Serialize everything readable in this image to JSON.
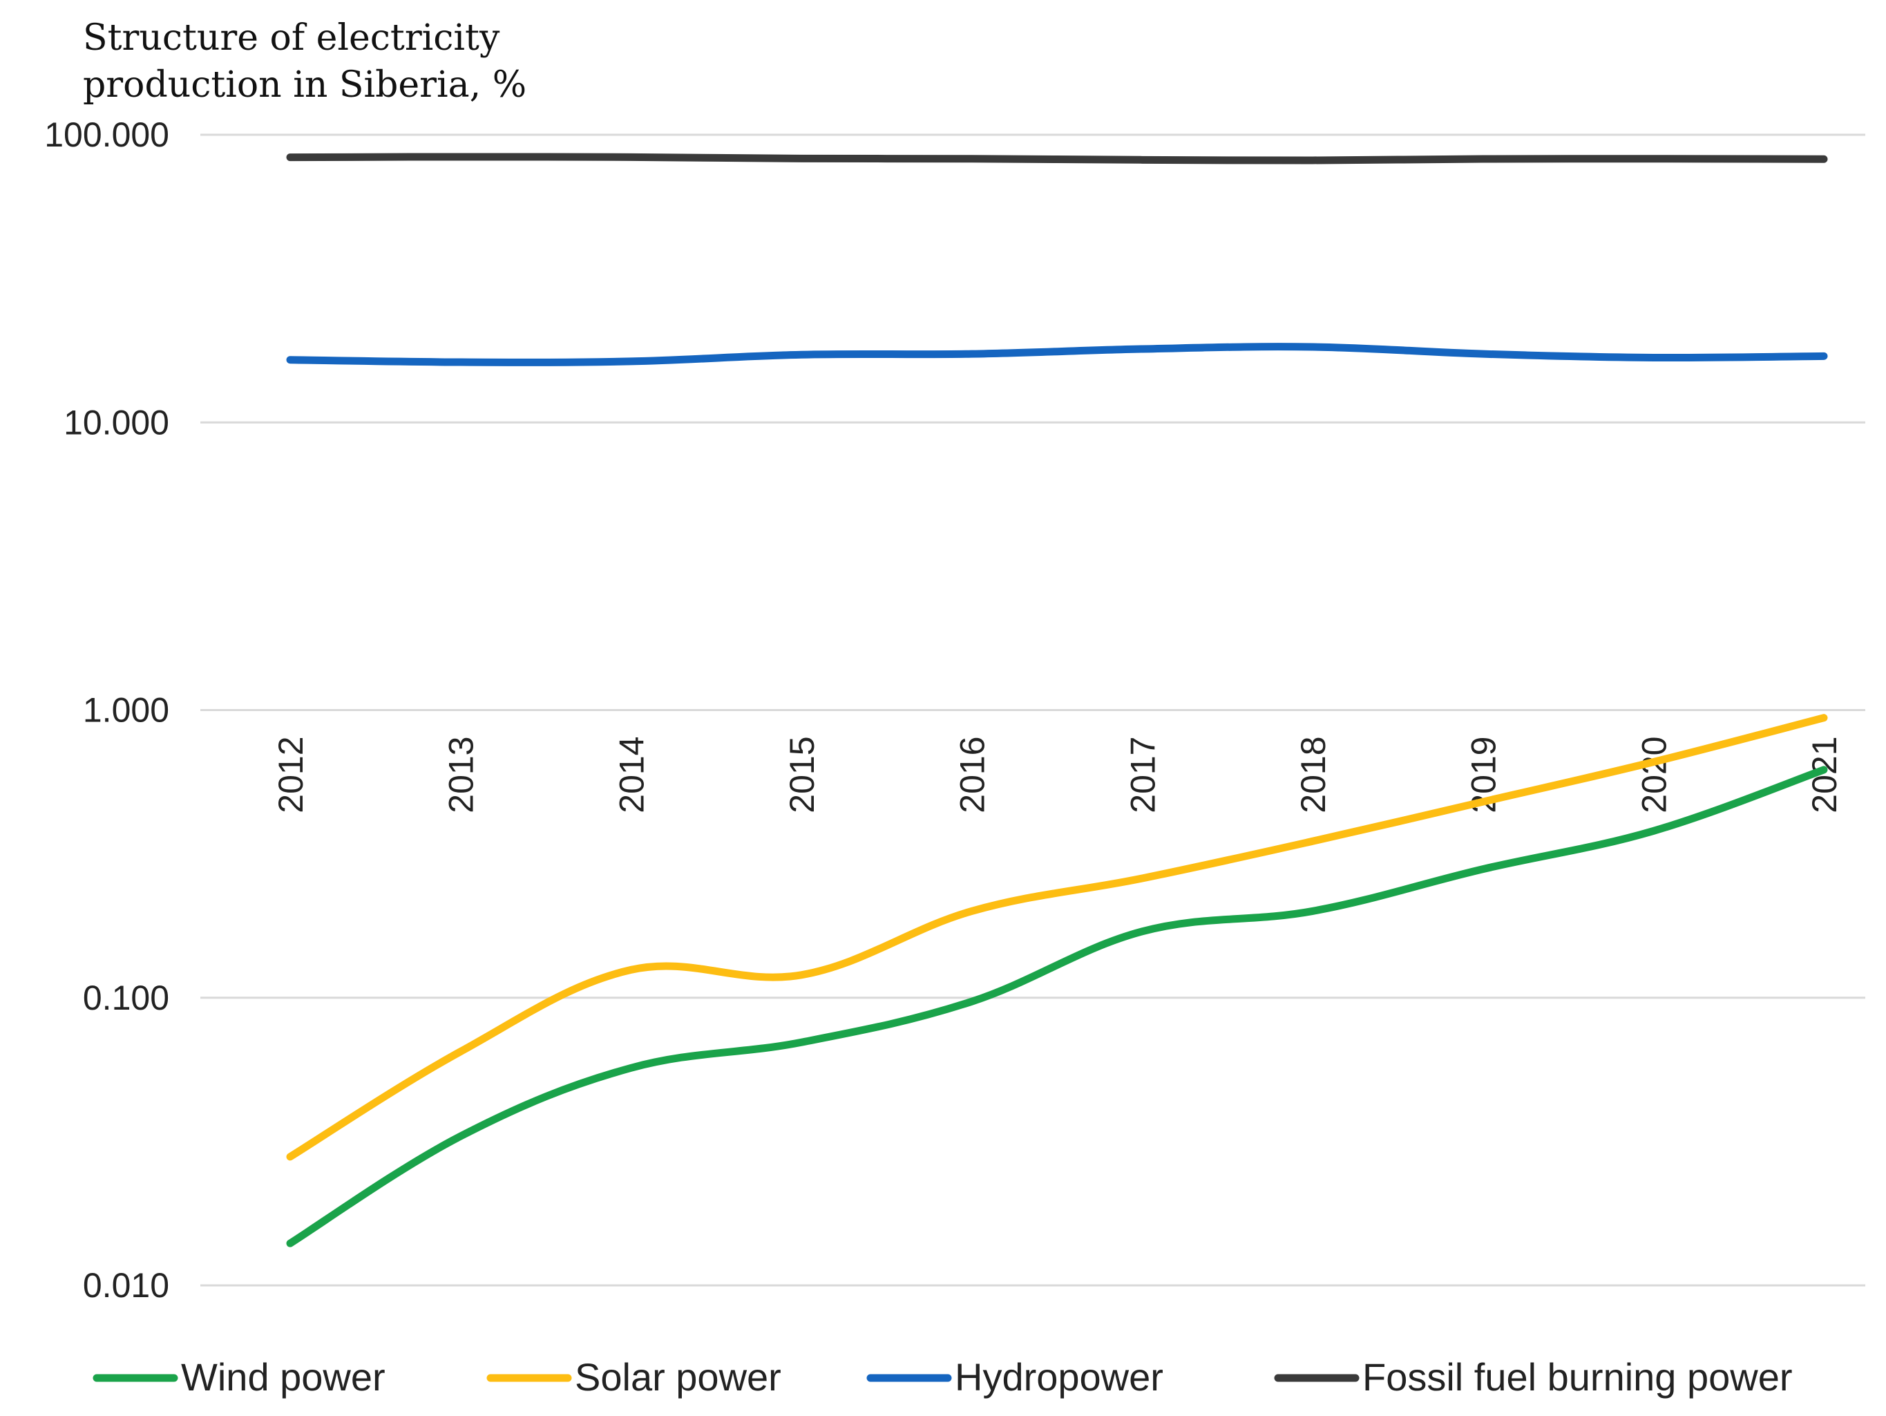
{
  "chart_data": {
    "type": "line",
    "title": "",
    "ylabel_lines": [
      "Structure of electricity",
      "production in Siberia, %"
    ],
    "xlabel": "",
    "yscale": "log",
    "ylim": [
      0.01,
      100
    ],
    "yticks": [
      100,
      10,
      1,
      0.1,
      0.01
    ],
    "ytick_labels": [
      "100.000",
      "10.000",
      "1.000",
      "0.100",
      "0.010"
    ],
    "x": [
      "2012",
      "2013",
      "2014",
      "2015",
      "2016",
      "2017",
      "2018",
      "2019",
      "2020",
      "2021"
    ],
    "grid": true,
    "legend_position": "bottom",
    "series": [
      {
        "name": "Wind power",
        "color": "#1aa34a",
        "values": [
          0.014,
          0.033,
          0.057,
          0.07,
          0.097,
          0.17,
          0.2,
          0.28,
          0.38,
          0.62
        ]
      },
      {
        "name": "Solar power",
        "color": "#fdbd12",
        "values": [
          0.028,
          0.065,
          0.125,
          0.12,
          0.2,
          0.26,
          0.35,
          0.48,
          0.66,
          0.94
        ]
      },
      {
        "name": "Hydropower",
        "color": "#1565c0",
        "values": [
          16.5,
          16.2,
          16.3,
          17.2,
          17.3,
          18.0,
          18.3,
          17.3,
          16.8,
          17.0
        ]
      },
      {
        "name": "Fossil fuel burning power",
        "color": "#3a3a3a",
        "values": [
          83.5,
          83.8,
          83.6,
          82.7,
          82.5,
          81.8,
          81.5,
          82.4,
          82.5,
          82.3
        ]
      }
    ]
  }
}
